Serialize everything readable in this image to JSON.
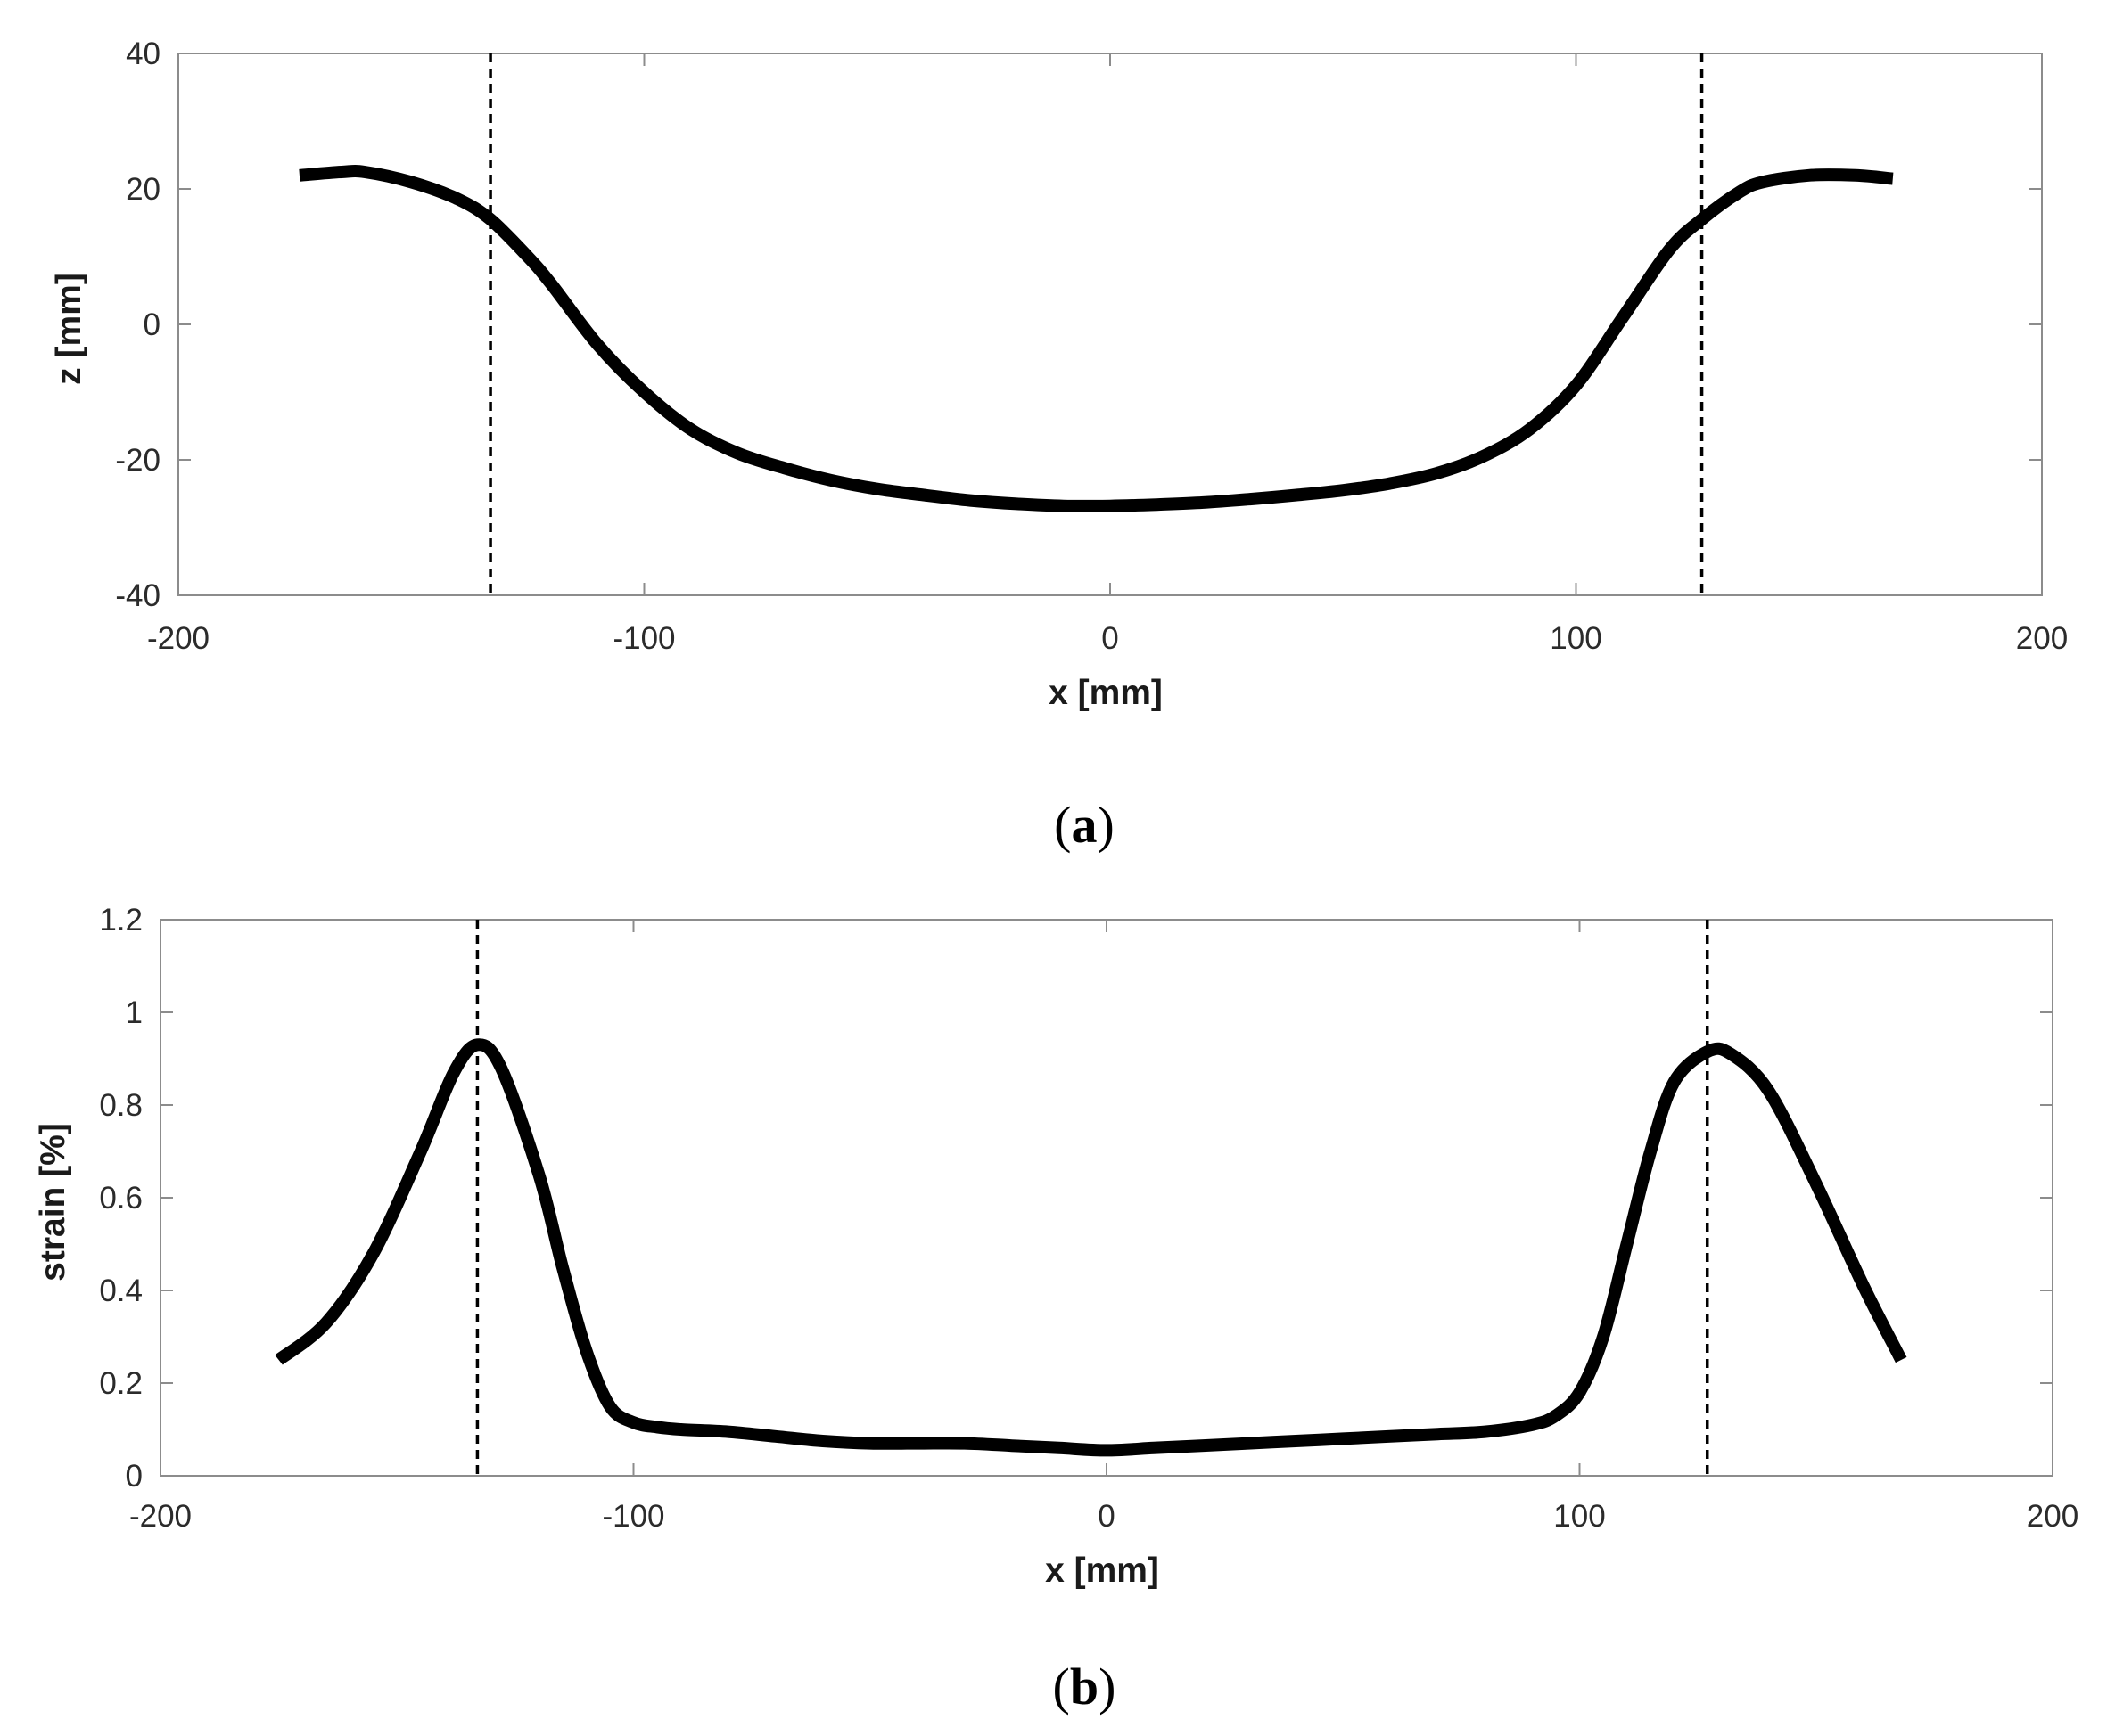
{
  "chart_data": [
    {
      "type": "line",
      "panel_label": "a",
      "xlabel": "x [mm]",
      "ylabel": "z [mm]",
      "xlim": [
        -200,
        200
      ],
      "ylim": [
        -40,
        40
      ],
      "xticks": [
        -200,
        -100,
        0,
        100,
        200
      ],
      "yticks": [
        -40,
        -20,
        0,
        20,
        40
      ],
      "grid": false,
      "vertical_dashed_lines_x": [
        -133,
        127
      ],
      "series": [
        {
          "x": [
            -174,
            -165,
            -160,
            -150,
            -140,
            -133,
            -125,
            -120,
            -110,
            -100,
            -90,
            -80,
            -70,
            -60,
            -50,
            -40,
            -30,
            -20,
            -10,
            0,
            10,
            20,
            30,
            40,
            50,
            60,
            70,
            80,
            90,
            100,
            110,
            120,
            127,
            135,
            140,
            150,
            160,
            168
          ],
          "y": [
            22,
            22.5,
            22.5,
            21,
            18.5,
            15.5,
            10,
            6,
            -3,
            -10,
            -15.5,
            -19,
            -21.2,
            -23,
            -24.3,
            -25.2,
            -26,
            -26.5,
            -26.8,
            -26.8,
            -26.6,
            -26.3,
            -25.8,
            -25.2,
            -24.5,
            -23.5,
            -22,
            -19.5,
            -15.5,
            -9,
            1,
            11,
            15.5,
            19.5,
            21,
            22,
            22,
            21.5
          ]
        }
      ]
    },
    {
      "type": "line",
      "panel_label": "b",
      "xlabel": "x [mm]",
      "ylabel": "strain [%]",
      "xlim": [
        -200,
        200
      ],
      "ylim": [
        0,
        1.2
      ],
      "xticks": [
        -200,
        -100,
        0,
        100,
        200
      ],
      "yticks": [
        0,
        0.2,
        0.4,
        0.6,
        0.8,
        1,
        1.2
      ],
      "grid": false,
      "vertical_dashed_lines_x": [
        -133,
        127
      ],
      "series": [
        {
          "x": [
            -175,
            -165,
            -155,
            -145,
            -138,
            -133,
            -128,
            -120,
            -115,
            -110,
            -105,
            -100,
            -95,
            -90,
            -80,
            -70,
            -60,
            -50,
            -40,
            -30,
            -20,
            -10,
            0,
            10,
            20,
            30,
            40,
            50,
            60,
            70,
            80,
            90,
            95,
            100,
            105,
            110,
            115,
            120,
            127,
            132,
            140,
            150,
            160,
            168
          ],
          "y": [
            0.25,
            0.33,
            0.48,
            0.7,
            0.87,
            0.93,
            0.88,
            0.65,
            0.45,
            0.27,
            0.15,
            0.115,
            0.105,
            0.1,
            0.095,
            0.085,
            0.075,
            0.07,
            0.07,
            0.07,
            0.065,
            0.06,
            0.055,
            0.06,
            0.065,
            0.07,
            0.075,
            0.08,
            0.085,
            0.09,
            0.095,
            0.11,
            0.13,
            0.18,
            0.3,
            0.5,
            0.7,
            0.85,
            0.915,
            0.91,
            0.83,
            0.63,
            0.41,
            0.25
          ]
        }
      ]
    }
  ]
}
